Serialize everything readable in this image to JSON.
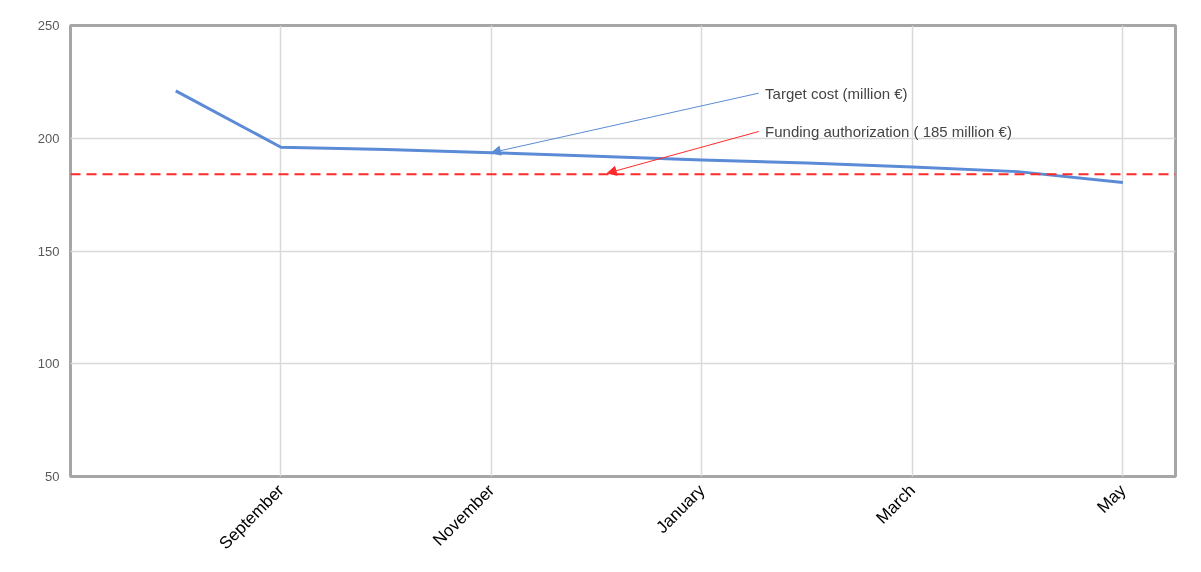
{
  "chart_data": {
    "type": "line",
    "categories": [
      null,
      "September",
      null,
      "November",
      null,
      "January",
      null,
      "March",
      null,
      "May"
    ],
    "series": [
      {
        "color": "#5b8bd6",
        "values": [
          221,
          196,
          195,
          193.6,
          192,
          190.4,
          189,
          187.2,
          185.2,
          180.4
        ]
      }
    ],
    "annotations": [
      {
        "text": "Target cost (million €)",
        "x": "November",
        "y": 193.6
      }
    ],
    "ylim": [
      50,
      250
    ],
    "yticks": [
      50,
      100,
      150,
      200,
      250
    ],
    "ref_lines": [
      {
        "axis": "y",
        "value": 184,
        "label": "Funding authorization ( 185 million €)",
        "color": "#ff2a2a",
        "line_style": "dashed"
      }
    ],
    "grid": true,
    "marker": "none",
    "line_style": "solid"
  }
}
